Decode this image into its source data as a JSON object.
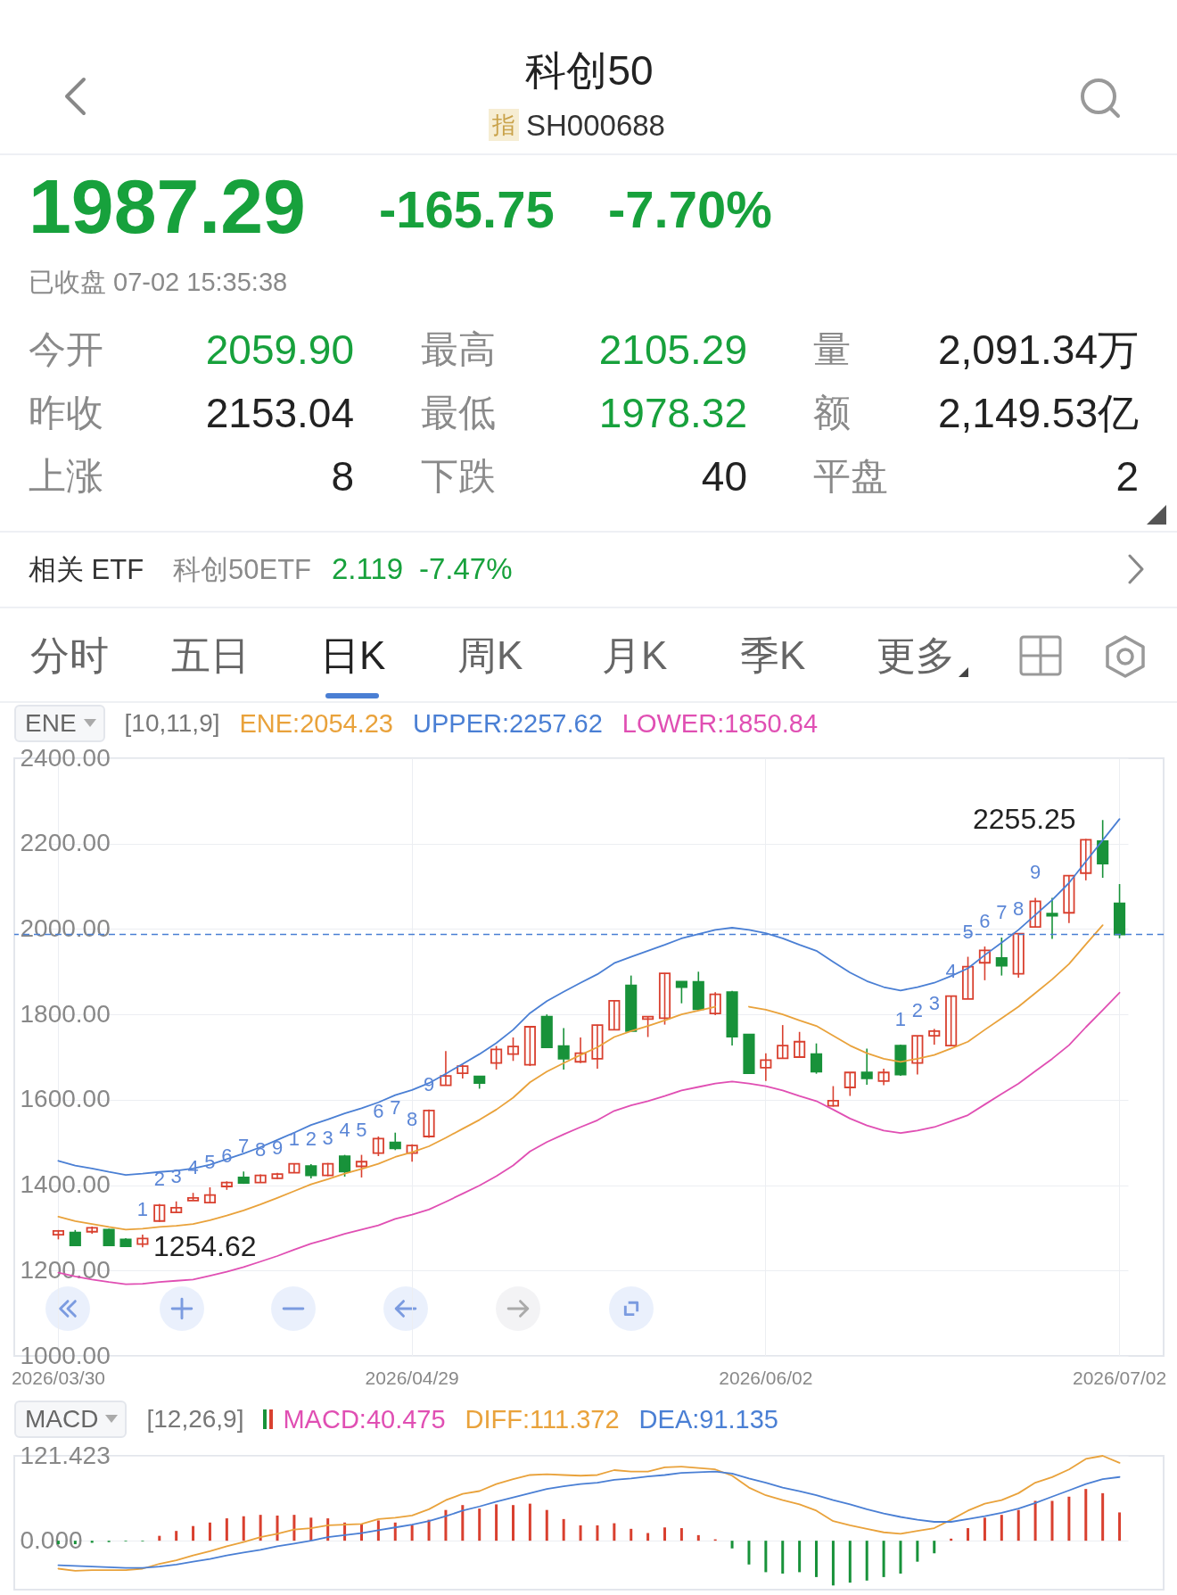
{
  "chart_data": [
    {
      "type": "other",
      "title": "科创50",
      "subtitle": "SH000688",
      "annotations": [
        "1987.29",
        "-165.75",
        "-7.70%",
        "已收盘 07-02 15:35:38",
        "今开",
        "2059.90",
        "最高",
        "2105.29",
        "量",
        "2,091.34万",
        "昨收",
        "2153.04",
        "最低",
        "1978.32",
        "额",
        "2,149.53亿",
        "上涨",
        "8",
        "下跌",
        "40",
        "平盘",
        "2",
        "相关 ETF",
        "科创50ETF",
        "2.119",
        "-7.47%",
        "分时",
        "五日",
        "日K",
        "周K",
        "月K",
        "季K",
        "更多",
        "指"
      ]
    },
    {
      "type": "candlestick",
      "legend": "top left",
      "legend_title": "ENE",
      "grid": true,
      "categories": [
        "2026/03/30",
        null,
        null,
        null,
        null,
        null,
        null,
        null,
        null,
        null,
        null,
        null,
        null,
        null,
        null,
        null,
        null,
        null,
        null,
        null,
        null,
        "2026/04/29",
        null,
        null,
        null,
        null,
        null,
        null,
        null,
        null,
        null,
        null,
        null,
        null,
        null,
        null,
        null,
        null,
        null,
        null,
        null,
        null,
        "2026/06/02",
        null,
        null,
        null,
        null,
        null,
        null,
        null,
        null,
        null,
        null,
        null,
        null,
        null,
        null,
        null,
        null,
        null,
        null,
        null,
        null,
        "2026/07/02"
      ],
      "ylim": [
        1000,
        2400
      ],
      "yticks": [
        {
          "value": 1000,
          "label": "1000.00"
        },
        {
          "value": 1200,
          "label": "1200.00"
        },
        {
          "value": 1400,
          "label": "1400.00"
        },
        {
          "value": 1600,
          "label": "1600.00"
        },
        {
          "value": 1800,
          "label": "1800.00"
        },
        {
          "value": 2000,
          "label": "2000.00"
        },
        {
          "value": 2200,
          "label": "2200.00"
        },
        {
          "value": 2400,
          "label": "2400.00"
        }
      ],
      "ohlc": [
        [
          1284,
          1295,
          1273,
          1293
        ],
        [
          1289,
          1295,
          1257,
          1259
        ],
        [
          1291,
          1303,
          1286,
          1300
        ],
        [
          1296,
          1298,
          1257,
          1259
        ],
        [
          1273,
          1276,
          1256,
          1257
        ],
        [
          1262,
          1284,
          1254.62,
          1275
        ],
        [
          1316,
          1356,
          1314,
          1353
        ],
        [
          1336,
          1362,
          1335,
          1347
        ],
        [
          1364,
          1382,
          1364,
          1370
        ],
        [
          1359,
          1395,
          1359,
          1377
        ],
        [
          1397,
          1409,
          1389,
          1406
        ],
        [
          1418,
          1432,
          1403,
          1405
        ],
        [
          1406,
          1425,
          1406,
          1423
        ],
        [
          1416,
          1429,
          1414,
          1426
        ],
        [
          1429,
          1450,
          1429,
          1450
        ],
        [
          1445,
          1449,
          1416,
          1423
        ],
        [
          1423,
          1452,
          1421,
          1450
        ],
        [
          1468,
          1471,
          1420,
          1432
        ],
        [
          1444,
          1471,
          1418,
          1455
        ],
        [
          1475,
          1514,
          1468,
          1509
        ],
        [
          1500,
          1523,
          1482,
          1486
        ],
        [
          1475,
          1496,
          1455,
          1493
        ],
        [
          1514,
          1577,
          1511,
          1575
        ],
        [
          1634,
          1714,
          1634,
          1656
        ],
        [
          1662,
          1682,
          1650,
          1679
        ],
        [
          1655,
          1655,
          1626,
          1639
        ],
        [
          1686,
          1726,
          1671,
          1718
        ],
        [
          1707,
          1746,
          1691,
          1725
        ],
        [
          1682,
          1773,
          1679,
          1771
        ],
        [
          1795,
          1800,
          1723,
          1723
        ],
        [
          1726,
          1768,
          1671,
          1696
        ],
        [
          1689,
          1746,
          1686,
          1709
        ],
        [
          1696,
          1776,
          1673,
          1775
        ],
        [
          1764,
          1832,
          1764,
          1832
        ],
        [
          1868,
          1891,
          1761,
          1761
        ],
        [
          1789,
          1795,
          1747,
          1795
        ],
        [
          1791,
          1897,
          1776,
          1896
        ],
        [
          1877,
          1877,
          1826,
          1864
        ],
        [
          1876,
          1900,
          1809,
          1812
        ],
        [
          1802,
          1852,
          1798,
          1847
        ],
        [
          1852,
          1855,
          1727,
          1748
        ],
        [
          1753,
          1753,
          1662,
          1662
        ],
        [
          1675,
          1709,
          1644,
          1693
        ],
        [
          1697,
          1775,
          1697,
          1727
        ],
        [
          1700,
          1759,
          1700,
          1736
        ],
        [
          1707,
          1732,
          1661,
          1666
        ],
        [
          1586,
          1632,
          1584,
          1598
        ],
        [
          1629,
          1664,
          1609,
          1664
        ],
        [
          1664,
          1720,
          1635,
          1650
        ],
        [
          1644,
          1673,
          1634,
          1664
        ],
        [
          1727,
          1729,
          1656,
          1659
        ],
        [
          1686,
          1750,
          1659,
          1750
        ],
        [
          1750,
          1766,
          1729,
          1761
        ],
        [
          1727,
          1843,
          1727,
          1843
        ],
        [
          1836,
          1935,
          1836,
          1912
        ],
        [
          1921,
          1959,
          1880,
          1950
        ],
        [
          1932,
          1980,
          1891,
          1914
        ],
        [
          1895,
          1989,
          1886,
          1989
        ],
        [
          2005,
          2073,
          2003,
          2065
        ],
        [
          2036,
          2073,
          1977,
          2031
        ],
        [
          2038,
          2125,
          2014,
          2125
        ],
        [
          2131,
          2211,
          2114,
          2209
        ],
        [
          2206,
          2255.25,
          2120,
          2153.04
        ],
        [
          2059.9,
          2105.29,
          1978.32,
          1987.29
        ]
      ],
      "colors": [
        "#d9402f",
        "#18923a",
        "#d9402f",
        "#18923a",
        "#18923a",
        "#d9402f",
        "#d9402f",
        "#d9402f",
        "#d9402f",
        "#d9402f",
        "#d9402f",
        "#18923a",
        "#d9402f",
        "#d9402f",
        "#d9402f",
        "#18923a",
        "#d9402f",
        "#18923a",
        "#d9402f",
        "#d9402f",
        "#18923a",
        "#d9402f",
        "#d9402f",
        "#d9402f",
        "#d9402f",
        "#18923a",
        "#d9402f",
        "#d9402f",
        "#d9402f",
        "#18923a",
        "#18923a",
        "#d9402f",
        "#d9402f",
        "#d9402f",
        "#18923a",
        "#d9402f",
        "#d9402f",
        "#18923a",
        "#18923a",
        "#d9402f",
        "#18923a",
        "#18923a",
        "#d9402f",
        "#d9402f",
        "#d9402f",
        "#18923a",
        "#d9402f",
        "#d9402f",
        "#18923a",
        "#d9402f",
        "#18923a",
        "#d9402f",
        "#d9402f",
        "#d9402f",
        "#d9402f",
        "#d9402f",
        "#18923a",
        "#d9402f",
        "#d9402f",
        "#18923a",
        "#d9402f",
        "#d9402f",
        "#18923a",
        "#18923a"
      ],
      "value_labels": [
        null,
        null,
        null,
        null,
        null,
        "1",
        "2",
        "3",
        "4",
        "5",
        "6",
        "7",
        "8",
        "9",
        "1",
        "2",
        "3",
        "4",
        "5",
        "6",
        "7",
        "8",
        "9",
        null,
        null,
        null,
        null,
        null,
        null,
        null,
        null,
        null,
        null,
        null,
        null,
        null,
        null,
        null,
        null,
        null,
        null,
        null,
        null,
        null,
        null,
        null,
        null,
        null,
        null,
        null,
        "1",
        "2",
        "3",
        "4",
        "5",
        "6",
        "7",
        "8",
        "9",
        null,
        null,
        null,
        null,
        null
      ],
      "series": [
        {
          "type": "line",
          "name": "ENE:2054.23",
          "color": "#e9a23b",
          "values": [
            1326,
            1316,
            1309,
            1302,
            1296,
            1298,
            1302,
            1305,
            1309,
            1318,
            1329,
            1341,
            1355,
            1370,
            1386,
            1402,
            1414,
            1427,
            1438,
            1450,
            1466,
            1477,
            1491,
            1511,
            1532,
            1553,
            1577,
            1605,
            1641,
            1666,
            1686,
            1705,
            1723,
            1747,
            1761,
            1773,
            1786,
            1800,
            1809,
            1818,
            null,
            1818,
            1811,
            1800,
            1786,
            1773,
            1750,
            1727,
            1709,
            1696,
            1689,
            1696,
            1705,
            1720,
            1736,
            1764,
            1791,
            1818,
            1850,
            1882,
            1918,
            1964,
            2009,
            null
          ]
        },
        {
          "type": "line",
          "name": "UPPER:2257.62",
          "color": "#4a7fd4",
          "values": [
            1457,
            1446,
            1439,
            1431,
            1424,
            1427,
            1431,
            1434,
            1439,
            1448,
            1461,
            1474,
            1489,
            1506,
            1523,
            1541,
            1554,
            1568,
            1580,
            1594,
            1611,
            1623,
            1639,
            1661,
            1684,
            1707,
            1733,
            1764,
            1803,
            1831,
            1853,
            1874,
            1894,
            1920,
            1935,
            1949,
            1963,
            1978,
            1988,
            1998,
            2003,
            1998,
            1990,
            1978,
            1963,
            1949,
            1923,
            1898,
            1878,
            1864,
            1856,
            1864,
            1874,
            1890,
            1908,
            1939,
            1968,
            1998,
            2033,
            2068,
            2108,
            2158,
            2208,
            2257.62
          ]
        },
        {
          "type": "line",
          "name": "LOWER:1850.84",
          "color": "#e04fb3",
          "values": [
            1195,
            1186,
            1179,
            1173,
            1168,
            1169,
            1173,
            1176,
            1179,
            1188,
            1197,
            1208,
            1221,
            1234,
            1249,
            1263,
            1274,
            1286,
            1296,
            1306,
            1321,
            1331,
            1343,
            1361,
            1380,
            1399,
            1421,
            1446,
            1479,
            1501,
            1519,
            1536,
            1552,
            1574,
            1587,
            1597,
            1609,
            1622,
            1630,
            1638,
            1643,
            1638,
            1632,
            1622,
            1609,
            1597,
            1577,
            1556,
            1540,
            1528,
            1522,
            1528,
            1536,
            1550,
            1564,
            1589,
            1614,
            1638,
            1667,
            1696,
            1728,
            1770,
            1810,
            1850.84
          ]
        }
      ],
      "ref_lines": [
        {
          "axis": "y",
          "value": 1987.29,
          "color": "#4a7fd4",
          "line_style": "dashed"
        }
      ],
      "annotations": [
        "[10,11,9]",
        "2255.25",
        "1254.62"
      ]
    },
    {
      "type": "bar",
      "legend": "top left",
      "legend_title": "MACD",
      "grid": "y",
      "categories": [
        null,
        null,
        null,
        null,
        null,
        null,
        null,
        null,
        null,
        null,
        null,
        null,
        null,
        null,
        null,
        null,
        null,
        null,
        null,
        null,
        null,
        null,
        null,
        null,
        null,
        null,
        null,
        null,
        null,
        null,
        null,
        null,
        null,
        null,
        null,
        null,
        null,
        null,
        null,
        null,
        null,
        null,
        null,
        null,
        null,
        null,
        null,
        null,
        null,
        null,
        null,
        null,
        null,
        null,
        null,
        null,
        null,
        null,
        null,
        null,
        null,
        null,
        null,
        null
      ],
      "ylim": [
        -70,
        121.423
      ],
      "yticks": [
        121.423,
        {
          "value": 0,
          "label": "0.000"
        }
      ],
      "series": [
        {
          "type": "bar",
          "name": "MACD:40.475",
          "color": "#e04fb3",
          "colors": [
            "#18923a",
            "#18923a",
            "#18923a",
            "#18923a",
            "#18923a",
            "#18923a",
            "#d9402f",
            "#d9402f",
            "#d9402f",
            "#d9402f",
            "#d9402f",
            "#d9402f",
            "#d9402f",
            "#d9402f",
            "#d9402f",
            "#d9402f",
            "#d9402f",
            "#d9402f",
            "#d9402f",
            "#d9402f",
            "#d9402f",
            "#d9402f",
            "#d9402f",
            "#d9402f",
            "#d9402f",
            "#d9402f",
            "#d9402f",
            "#d9402f",
            "#d9402f",
            "#d9402f",
            "#d9402f",
            "#d9402f",
            "#d9402f",
            "#d9402f",
            "#d9402f",
            "#d9402f",
            "#d9402f",
            "#d9402f",
            "#d9402f",
            "#d9402f",
            "#18923a",
            "#18923a",
            "#18923a",
            "#18923a",
            "#18923a",
            "#18923a",
            "#18923a",
            "#18923a",
            "#18923a",
            "#18923a",
            "#18923a",
            "#18923a",
            "#18923a",
            "#d9402f",
            "#d9402f",
            "#d9402f",
            "#d9402f",
            "#d9402f",
            "#d9402f",
            "#d9402f",
            "#d9402f",
            "#d9402f",
            "#d9402f",
            "#d9402f"
          ],
          "values": [
            -5,
            -5,
            -3,
            -2,
            -1,
            -1,
            7,
            14,
            21,
            26,
            32,
            35,
            37,
            36,
            37,
            33,
            32,
            26,
            24,
            29,
            26,
            22,
            30,
            44,
            51,
            46,
            52,
            51,
            53,
            44,
            31,
            22,
            22,
            25,
            17,
            11,
            19,
            18,
            8,
            2,
            -11,
            -34,
            -45,
            -47,
            -45,
            -52,
            -64,
            -60,
            -57,
            -52,
            -47,
            -30,
            -18,
            3,
            18,
            33,
            37,
            44,
            57,
            57,
            63,
            74,
            68,
            40.475
          ]
        },
        {
          "type": "line",
          "name": "DIFF:111.372",
          "color": "#e9a23b",
          "values": [
            -40,
            -43,
            -42,
            -42,
            -42,
            -40,
            -33,
            -28,
            -21,
            -15,
            -8,
            -2,
            5,
            10,
            16,
            18,
            22,
            23,
            24,
            31,
            33,
            36,
            45,
            58,
            67,
            71,
            81,
            88,
            94,
            95,
            94,
            93,
            94,
            101,
            99,
            99,
            105,
            106,
            104,
            102,
            93,
            76,
            65,
            58,
            52,
            43,
            28,
            22,
            17,
            12,
            10,
            14,
            18,
            30,
            43,
            53,
            58,
            68,
            83,
            91,
            102,
            117,
            121.423,
            111.372
          ]
        },
        {
          "type": "line",
          "name": "DEA:91.135",
          "color": "#4a7fd4",
          "values": [
            -35,
            -36,
            -37,
            -38,
            -39,
            -39,
            -37,
            -34,
            -30,
            -26,
            -21,
            -17,
            -13,
            -8,
            -4,
            0,
            5,
            8,
            11,
            15,
            19,
            23,
            28,
            35,
            43,
            49,
            56,
            62,
            68,
            74,
            78,
            81,
            83,
            87,
            89,
            92,
            94,
            97,
            98,
            99,
            96,
            89,
            83,
            76,
            71,
            65,
            58,
            52,
            45,
            39,
            34,
            30,
            27,
            27,
            31,
            35,
            40,
            46,
            54,
            63,
            72,
            81,
            88,
            91.135
          ]
        }
      ],
      "annotations": [
        "[12,26,9]"
      ]
    }
  ]
}
